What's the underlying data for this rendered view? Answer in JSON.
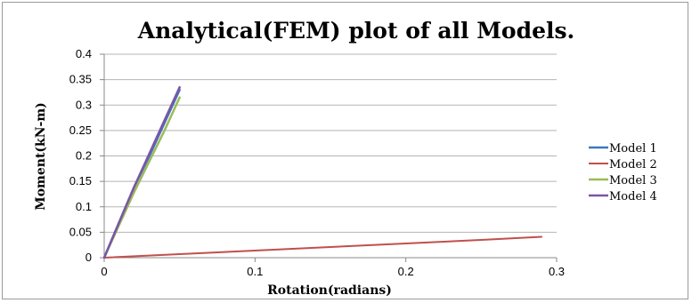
{
  "chart_data": {
    "type": "line",
    "title": "Analytical(FEM) plot of all Models.",
    "xlabel": "Rotation(radians)",
    "ylabel": "Moment(kN-m)",
    "xlim": [
      0,
      0.3
    ],
    "ylim": [
      0,
      0.4
    ],
    "x_ticks": [
      "0",
      "0.1",
      "0.2",
      "0.3"
    ],
    "y_ticks": [
      "0",
      "0.05",
      "0.1",
      "0.15",
      "0.2",
      "0.25",
      "0.3",
      "0.35",
      "0.4"
    ],
    "x_tick_values": [
      0,
      0.1,
      0.2,
      0.3
    ],
    "y_tick_values": [
      0,
      0.05,
      0.1,
      0.15,
      0.2,
      0.25,
      0.3,
      0.35,
      0.4
    ],
    "grid": "horizontal",
    "legend_position": "right",
    "series": [
      {
        "name": "Model 1",
        "color": "#3c78c0",
        "width": 2.5,
        "points": [
          [
            0,
            0
          ],
          [
            0.01,
            0.07
          ],
          [
            0.02,
            0.14
          ],
          [
            0.03,
            0.2
          ],
          [
            0.04,
            0.265
          ],
          [
            0.05,
            0.33
          ]
        ]
      },
      {
        "name": "Model 2",
        "color": "#c0504d",
        "width": 2,
        "points": [
          [
            0,
            0
          ],
          [
            0.05,
            0.007
          ],
          [
            0.1,
            0.014
          ],
          [
            0.15,
            0.021
          ],
          [
            0.2,
            0.028
          ],
          [
            0.25,
            0.035
          ],
          [
            0.29,
            0.041
          ]
        ]
      },
      {
        "name": "Model 3",
        "color": "#9bbb59",
        "width": 2.5,
        "points": [
          [
            0,
            0
          ],
          [
            0.01,
            0.065
          ],
          [
            0.02,
            0.13
          ],
          [
            0.03,
            0.19
          ],
          [
            0.04,
            0.25
          ],
          [
            0.05,
            0.315
          ]
        ]
      },
      {
        "name": "Model 4",
        "color": "#7b55a6",
        "width": 2.5,
        "points": [
          [
            0,
            0
          ],
          [
            0.01,
            0.07
          ],
          [
            0.02,
            0.14
          ],
          [
            0.03,
            0.205
          ],
          [
            0.04,
            0.27
          ],
          [
            0.05,
            0.335
          ]
        ]
      }
    ]
  }
}
